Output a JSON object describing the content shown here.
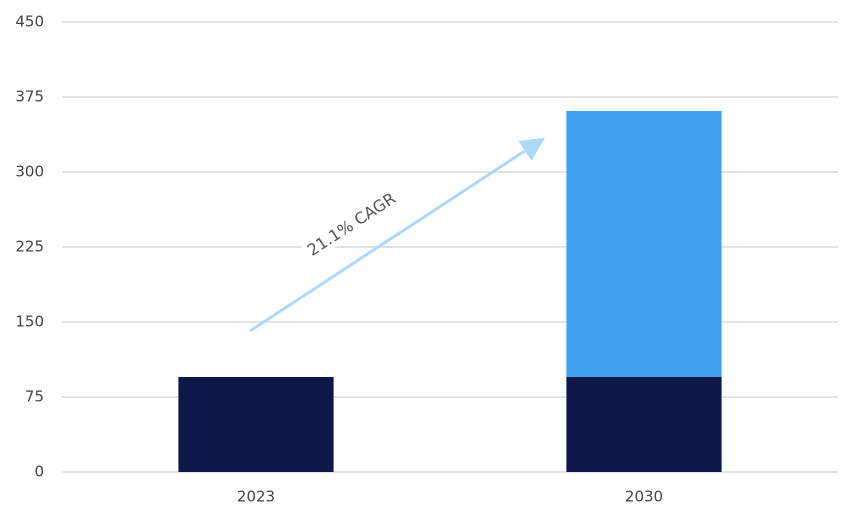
{
  "chart_data": {
    "type": "stacked-bar",
    "categories": [
      "2023",
      "2030"
    ],
    "series": [
      {
        "color": "#0d1847",
        "values": [
          95,
          95
        ]
      },
      {
        "color": "#40a2ee",
        "values": [
          0,
          266
        ]
      }
    ],
    "ylim": [
      0,
      450
    ],
    "yticks": [
      0,
      75,
      150,
      225,
      300,
      375,
      450
    ],
    "grid": true,
    "annotation": "21.1% CAGR"
  }
}
